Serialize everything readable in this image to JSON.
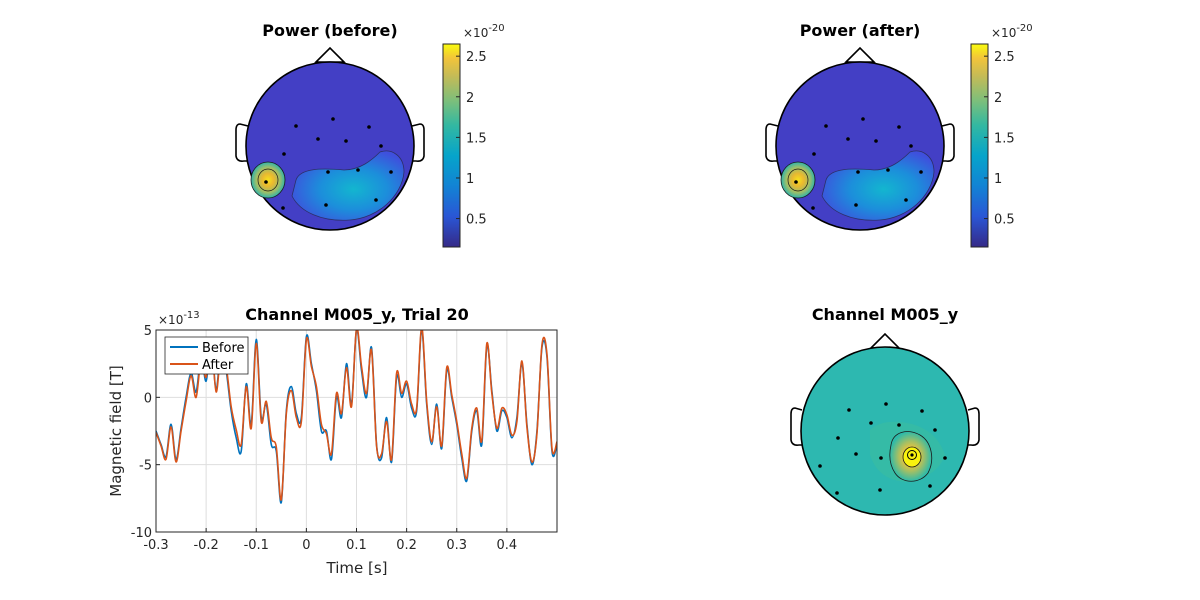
{
  "chart_data": [
    {
      "type": "heatmap",
      "title": "Power (before)",
      "colorbar": {
        "ticks": [
          "0.5",
          "1",
          "1.5",
          "2",
          "2.5"
        ],
        "tick_values": [
          0.5,
          1,
          1.5,
          2,
          2.5
        ],
        "exponent": "×10",
        "exponent_power": "-20",
        "range": [
          0.15,
          2.65
        ]
      }
    },
    {
      "type": "heatmap",
      "title": "Power (after)",
      "colorbar": {
        "ticks": [
          "0.5",
          "1",
          "1.5",
          "2",
          "2.5"
        ],
        "tick_values": [
          0.5,
          1,
          1.5,
          2,
          2.5
        ],
        "exponent": "×10",
        "exponent_power": "-20",
        "range": [
          0.15,
          2.65
        ]
      }
    },
    {
      "type": "line",
      "title": "Channel M005_y, Trial 20",
      "xlabel": "Time [s]",
      "ylabel": "Magnetic field [T]",
      "xlim": [
        -0.3,
        0.5
      ],
      "ylim": [
        -10,
        5
      ],
      "xticks": [
        "-0.3",
        "-0.2",
        "-0.1",
        "0",
        "0.1",
        "0.2",
        "0.3",
        "0.4"
      ],
      "xtick_values": [
        -0.3,
        -0.2,
        -0.1,
        0,
        0.1,
        0.2,
        0.3,
        0.4
      ],
      "yticks": [
        "5",
        "0",
        "-5",
        "-10"
      ],
      "ytick_values": [
        5,
        0,
        -5,
        -10
      ],
      "y_exponent": "×10",
      "y_exponent_power": "-13",
      "grid": true,
      "legend_position": "top-left",
      "x": [
        -0.3,
        -0.29,
        -0.28,
        -0.27,
        -0.26,
        -0.25,
        -0.24,
        -0.23,
        -0.22,
        -0.21,
        -0.2,
        -0.19,
        -0.18,
        -0.17,
        -0.16,
        -0.15,
        -0.14,
        -0.13,
        -0.12,
        -0.11,
        -0.1,
        -0.09,
        -0.08,
        -0.07,
        -0.06,
        -0.05,
        -0.04,
        -0.03,
        -0.02,
        -0.01,
        0.0,
        0.01,
        0.02,
        0.03,
        0.04,
        0.05,
        0.06,
        0.07,
        0.08,
        0.09,
        0.1,
        0.11,
        0.12,
        0.13,
        0.14,
        0.15,
        0.16,
        0.17,
        0.18,
        0.19,
        0.2,
        0.21,
        0.22,
        0.23,
        0.24,
        0.25,
        0.26,
        0.27,
        0.28,
        0.29,
        0.3,
        0.31,
        0.32,
        0.33,
        0.34,
        0.35,
        0.36,
        0.37,
        0.38,
        0.39,
        0.4,
        0.41,
        0.42,
        0.43,
        0.44,
        0.45,
        0.46,
        0.47,
        0.48,
        0.49,
        0.5
      ],
      "series": [
        {
          "name": "Before",
          "color": "#0072BD",
          "values": [
            -2.5,
            -3.5,
            -4.4,
            -2.0,
            -4.6,
            -2.3,
            0.0,
            1.8,
            0.4,
            3.0,
            1.2,
            4.0,
            0.6,
            3.8,
            2.0,
            -1.0,
            -3.0,
            -4.0,
            1.0,
            -2.0,
            4.3,
            -1.5,
            -0.5,
            -3.5,
            -4.0,
            -7.8,
            -1.0,
            0.8,
            -1.2,
            -1.5,
            4.5,
            2.5,
            0.5,
            -2.5,
            -2.5,
            -4.6,
            0.0,
            -1.5,
            2.5,
            -0.5,
            5.0,
            2.0,
            0.0,
            3.7,
            -3.5,
            -4.5,
            -1.5,
            -4.8,
            1.5,
            0.0,
            1.0,
            -0.8,
            -1.0,
            5.0,
            -0.5,
            -3.5,
            -0.5,
            -3.8,
            2.0,
            0.0,
            -2.0,
            -4.5,
            -6.2,
            -2.5,
            -1.0,
            -3.5,
            3.8,
            0.5,
            -2.5,
            -1.0,
            -1.5,
            -3.0,
            -1.5,
            2.5,
            -2.0,
            -5.0,
            -2.5,
            3.7,
            3.0,
            -4.0,
            -3.5
          ]
        },
        {
          "name": "After",
          "color": "#D95319",
          "values": [
            -2.6,
            -3.6,
            -4.6,
            -2.2,
            -4.8,
            -2.5,
            -0.3,
            1.6,
            0.0,
            2.8,
            1.5,
            4.2,
            0.4,
            3.5,
            2.3,
            -0.7,
            -2.4,
            -3.5,
            0.8,
            -2.3,
            4.0,
            -1.8,
            -0.3,
            -3.0,
            -3.7,
            -7.6,
            -1.2,
            0.5,
            -1.5,
            -1.8,
            4.3,
            2.3,
            0.8,
            -2.0,
            -2.7,
            -4.2,
            0.3,
            -1.2,
            2.2,
            -0.7,
            5.1,
            2.3,
            0.3,
            3.5,
            -3.6,
            -4.2,
            -1.8,
            -4.6,
            1.8,
            0.3,
            1.2,
            -0.5,
            -0.8,
            5.2,
            -0.3,
            -3.3,
            -0.7,
            -3.6,
            2.2,
            0.2,
            -1.8,
            -4.2,
            -6.0,
            -2.3,
            -0.8,
            -3.2,
            4.0,
            0.3,
            -2.3,
            -0.8,
            -1.3,
            -2.8,
            -1.8,
            2.7,
            -2.2,
            -4.8,
            -2.7,
            3.9,
            3.2,
            -3.8,
            -3.3
          ]
        }
      ]
    },
    {
      "type": "heatmap",
      "title": "Channel M005_y"
    }
  ]
}
